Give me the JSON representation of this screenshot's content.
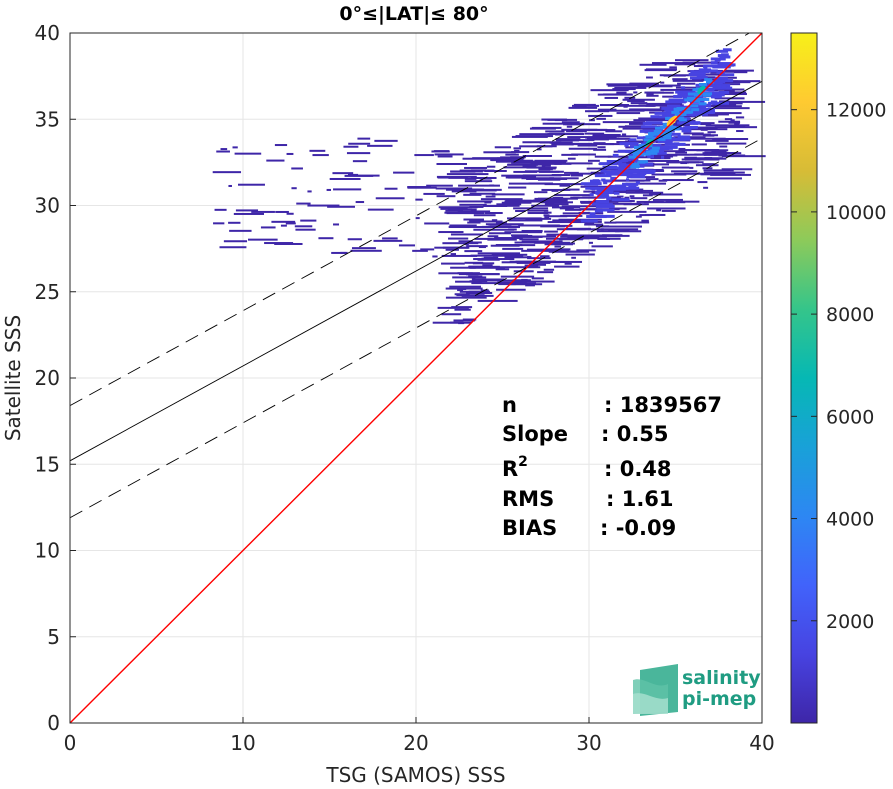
{
  "chart_data": {
    "type": "heatmap",
    "title": "0°≤|LAT|≤ 80°",
    "xlabel": "TSG (SAMOS) SSS",
    "ylabel": "Satellite SSS",
    "xlim": [
      0,
      40
    ],
    "ylim": [
      0,
      40
    ],
    "xticks": [
      "0",
      "10",
      "20",
      "30",
      "40"
    ],
    "yticks": [
      "0",
      "5",
      "10",
      "15",
      "20",
      "25",
      "30",
      "35",
      "40"
    ],
    "grid": true,
    "colorbar": {
      "range": [
        0,
        13500
      ],
      "ticks": [
        "2000",
        "4000",
        "6000",
        "8000",
        "10000",
        "12000"
      ],
      "colormap": [
        "#3e26a8",
        "#4743e1",
        "#4163fb",
        "#2d87f3",
        "#19a1d8",
        "#06b8b4",
        "#35c58a",
        "#8dca5a",
        "#d7bc36",
        "#feca31",
        "#f7f019"
      ]
    },
    "lines": [
      {
        "name": "one-to-one",
        "x": [
          0,
          40
        ],
        "y": [
          0,
          40
        ],
        "color": "#ff0000",
        "style": "solid"
      },
      {
        "name": "fit",
        "x": [
          0,
          40
        ],
        "y": [
          15.2,
          37.2
        ],
        "color": "#000000",
        "style": "solid"
      },
      {
        "name": "fit-upper",
        "x": [
          0,
          40
        ],
        "y": [
          18.4,
          40.4
        ],
        "color": "#000000",
        "style": "dashed"
      },
      {
        "name": "fit-lower",
        "x": [
          0,
          40
        ],
        "y": [
          11.9,
          33.9
        ],
        "color": "#000000",
        "style": "dashed"
      }
    ],
    "density_hotspots": [
      {
        "x": 34.8,
        "y": 34.9,
        "level": "max"
      },
      {
        "x": 33.5,
        "y": 33.6,
        "level": "high"
      },
      {
        "x": 36.5,
        "y": 36.7,
        "level": "high"
      }
    ],
    "stats": [
      {
        "label": "n",
        "value": ": 1839567"
      },
      {
        "label": "Slope",
        "value": ": 0.55"
      },
      {
        "label": "R",
        "sup": "2",
        "value": ": 0.48"
      },
      {
        "label": "RMS",
        "value": ": 1.61"
      },
      {
        "label": "BIAS",
        "value": ": -0.09"
      }
    ]
  },
  "logo": {
    "line1": "salinity",
    "line2": "pi-mep"
  },
  "colors": {
    "grid": "#e6e6e6",
    "axis": "#262626",
    "logo_text": "#1f9c82",
    "logo_mark": "#2aa98a"
  }
}
